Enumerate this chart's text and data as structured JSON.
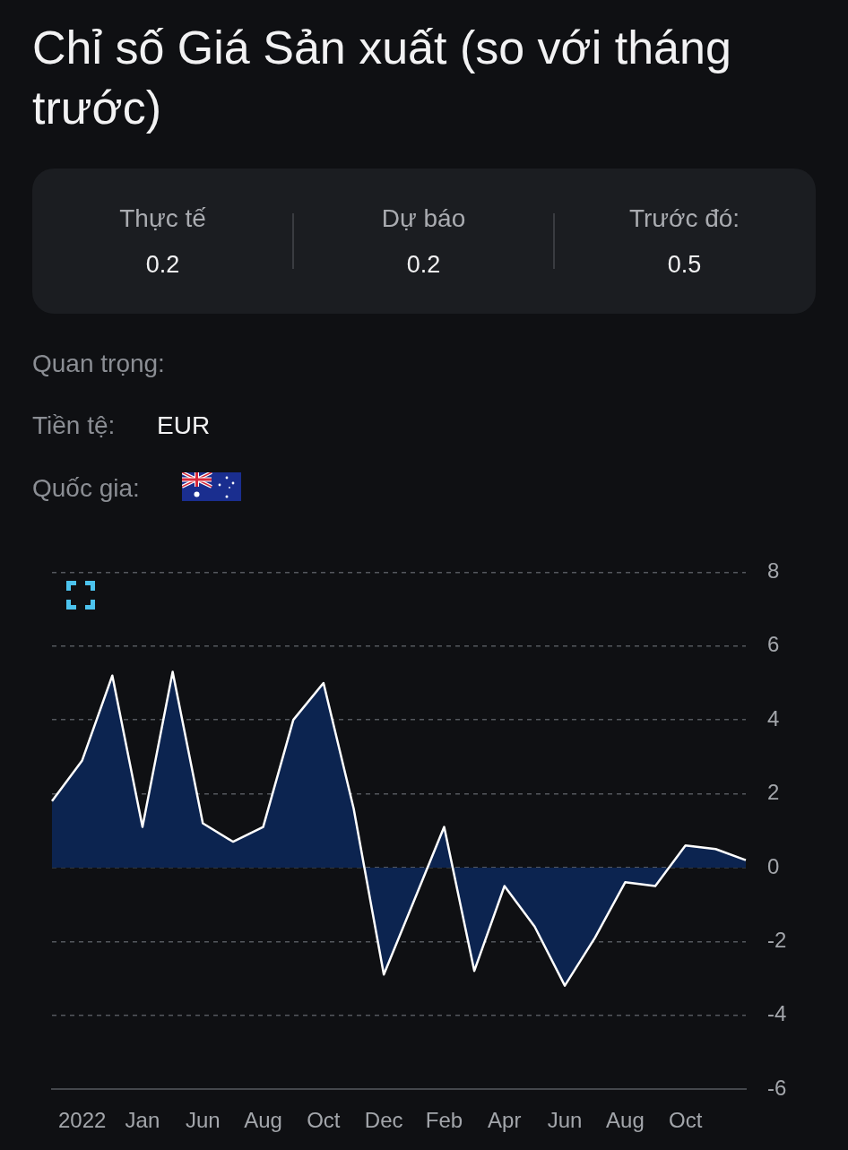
{
  "chart_data": {
    "type": "area",
    "title": "Chỉ số Giá Sản xuất (so với tháng trước)",
    "annotations": [
      "Thực tế",
      "0.2",
      "Dự báo",
      "0.2",
      "Trước đó:",
      "0.5",
      "Quan trọng:",
      "Tiền tệ:",
      "EUR",
      "Quốc gia:"
    ],
    "categories": [
      null,
      "2022",
      null,
      "Jan",
      null,
      "Jun",
      null,
      "Aug",
      null,
      "Oct",
      null,
      "Dec",
      null,
      "Feb",
      null,
      "Apr",
      null,
      "Jun",
      null,
      "Aug",
      null,
      "Oct",
      null,
      null
    ],
    "values": [
      1.8,
      2.9,
      5.2,
      1.1,
      5.3,
      1.2,
      0.7,
      1.1,
      4.0,
      5.0,
      1.6,
      -2.9,
      -0.9,
      1.1,
      -2.8,
      -0.5,
      -1.6,
      -3.2,
      -1.9,
      -0.4,
      -0.5,
      0.6,
      0.5,
      0.2
    ],
    "color": "#0c2450",
    "ylim": [
      -6,
      8
    ],
    "yticks": [
      -6,
      -4,
      -2,
      0,
      2,
      4,
      6,
      8
    ],
    "grid": "y",
    "marker": "none"
  }
}
